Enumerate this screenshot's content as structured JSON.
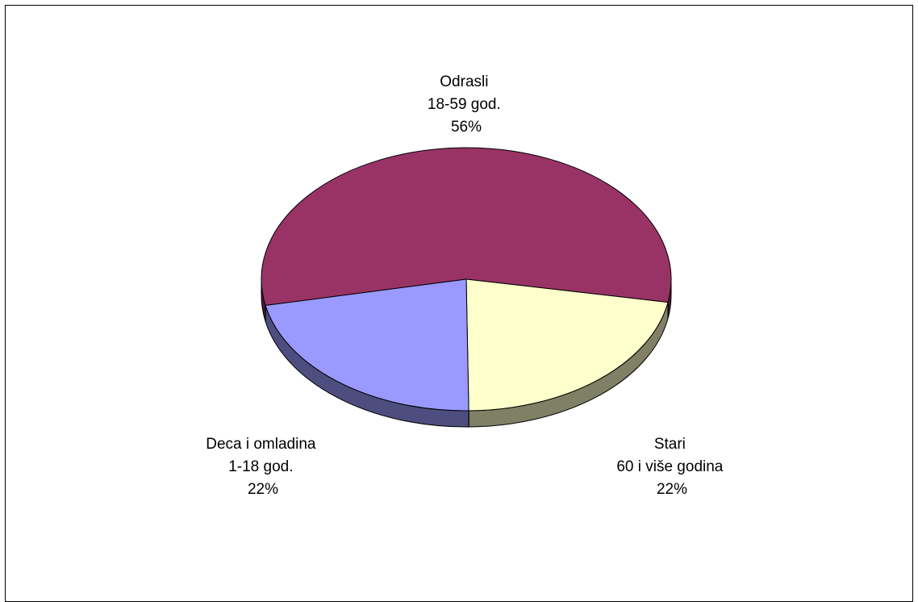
{
  "chart_data": {
    "type": "pie",
    "three_d": true,
    "title": "",
    "slices": [
      {
        "name": "Odrasli",
        "sublabel": "18-59 god.",
        "value": 56,
        "percent_label": "56%",
        "top_color": "#993366",
        "side_color": "#4d1a33"
      },
      {
        "name": "Stari",
        "sublabel": "60 i više godina",
        "value": 22,
        "percent_label": "22%",
        "top_color": "#ffffcc",
        "side_color": "#808066"
      },
      {
        "name": "Deca i omladina",
        "sublabel": "1-18 god.",
        "value": 22,
        "percent_label": "22%",
        "top_color": "#9999ff",
        "side_color": "#4d4d80"
      }
    ]
  }
}
